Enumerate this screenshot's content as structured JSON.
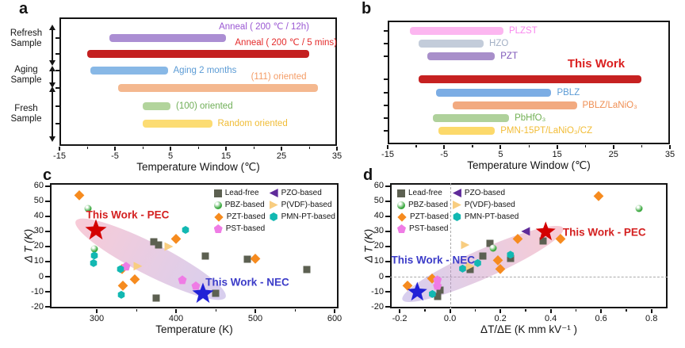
{
  "chart_data": [
    {
      "id": "a",
      "type": "bar-range",
      "panel_letter": "a",
      "xlabel": "Temperature Window (℃)",
      "xlim": [
        -15,
        35
      ],
      "xtick_vals": [
        -15,
        -5,
        5,
        15,
        25,
        35
      ],
      "xtick_labels": [
        "-15",
        "-5",
        "5",
        "15",
        "25",
        "35"
      ],
      "minor_xticks": [
        -10,
        0,
        10,
        20,
        30
      ],
      "group_labels": [
        {
          "label": "Refresh\nSample"
        },
        {
          "label": "Aging\nSample"
        },
        {
          "label": "Fresh\nSample"
        }
      ],
      "bars": [
        {
          "label": "Anneal ( 200 ℃ / 12h)",
          "range": [
            -6,
            15
          ],
          "color": "#ab8ed3",
          "label_color": "#9a57d3",
          "label_pos": "above",
          "label_right": 30
        },
        {
          "label": "Anneal ( 200 ℃ / 5 mins)",
          "range": [
            -10,
            30
          ],
          "color": "#c42020",
          "label_color": "#e42a2a",
          "label_pos": "above",
          "label_right": 35
        },
        {
          "label": "Aging 2 months",
          "range": [
            -9.5,
            4.5
          ],
          "color": "#88b8e6",
          "label_color": "#5b9bd5",
          "label_pos": "right"
        },
        {
          "label": "(111) oriented",
          "range": [
            -4.5,
            31.5
          ],
          "color": "#f4b88f",
          "label_color": "#f49c66",
          "label_pos": "above",
          "label_right": 29.5
        },
        {
          "label": "(100) oriented",
          "range": [
            0,
            5
          ],
          "color": "#b2d49c",
          "label_color": "#6fae57",
          "label_pos": "right"
        },
        {
          "label": "Random oriented",
          "range": [
            0,
            12.5
          ],
          "color": "#fcdc73",
          "label_color": "#f0bc35",
          "label_pos": "right"
        }
      ]
    },
    {
      "id": "b",
      "type": "bar-range",
      "panel_letter": "b",
      "xlabel": "Temperature Window (℃)",
      "xlim": [
        -15,
        35
      ],
      "xtick_vals": [
        -15,
        -5,
        5,
        15,
        25,
        35
      ],
      "xtick_labels": [
        "-15",
        "-5",
        "5",
        "15",
        "25",
        "35"
      ],
      "minor_xticks": [
        -10,
        0,
        10,
        20,
        30
      ],
      "bars": [
        {
          "label": "PLZST",
          "range": [
            -11,
            5.5
          ],
          "color": "#fcb6f0",
          "label_color": "#f986ee",
          "label_pos": "right"
        },
        {
          "label": "HZO",
          "range": [
            -9.5,
            2
          ],
          "color": "#c3ccda",
          "label_color": "#a3b0c5",
          "label_pos": "right"
        },
        {
          "label": "PZT",
          "range": [
            -8,
            4
          ],
          "color": "#a88fca",
          "label_color": "#7e57b8",
          "label_pos": "right"
        },
        {
          "label": "This Work",
          "range": [
            -9.5,
            30
          ],
          "color": "#c62121",
          "label_color": "#da1f1f",
          "label_pos": "above",
          "label_right": 27,
          "label_size": 15,
          "label_bold": true
        },
        {
          "label": "PBLZ",
          "range": [
            -6.5,
            14
          ],
          "color": "#7cade4",
          "label_color": "#5b9bd5",
          "label_pos": "right"
        },
        {
          "label": "PBLZ/LaNiO₃",
          "range": [
            -3.5,
            18.5
          ],
          "color": "#f2aa80",
          "label_color": "#ef8e52",
          "label_pos": "right"
        },
        {
          "label": "PbHfO₃",
          "range": [
            -7,
            6.5
          ],
          "color": "#afd19b",
          "label_color": "#71b053",
          "label_pos": "right"
        },
        {
          "label": "PMN-15PT/LaNiO₃/CZ",
          "range": [
            -6,
            4
          ],
          "color": "#fcd96b",
          "label_color": "#f2bc35",
          "label_pos": "right"
        }
      ]
    },
    {
      "id": "c",
      "type": "scatter",
      "panel_letter": "c",
      "xlabel": "Temperature (K)",
      "ylabel": "Δ T (K)",
      "xlim": [
        241,
        605
      ],
      "ylim": [
        -21,
        62
      ],
      "xtick_vals": [
        300,
        400,
        500,
        600
      ],
      "xtick_labels": [
        "300",
        "400",
        "500",
        "600"
      ],
      "minor_xticks": [
        350,
        450,
        550
      ],
      "ytick_vals": [
        60,
        50,
        40,
        30,
        20,
        10,
        0,
        -10,
        -20
      ],
      "ytick_labels": [
        "60",
        "50",
        "40",
        "30",
        "20",
        "10",
        "0",
        "-10",
        "-20"
      ],
      "legend": {
        "position": "top-right",
        "entries": [
          "Lead-free",
          "PBZ-based",
          "PZT-based",
          "PST-based",
          "PZO-based",
          "P(VDF)-based",
          "PMN-PT-based"
        ]
      },
      "series": [
        {
          "name": "Lead-free",
          "marker": "square",
          "color": "#5c6051",
          "points": [
            [
              372,
              23
            ],
            [
              378,
              21
            ],
            [
              437,
              13.5
            ],
            [
              490,
              11.5
            ],
            [
              565,
              5
            ],
            [
              375,
              -14
            ],
            [
              450,
              -11
            ]
          ]
        },
        {
          "name": "PBZ-based",
          "marker": "circle",
          "color": "#3aa83e",
          "points": [
            [
              289,
              45
            ],
            [
              297,
              18.5
            ]
          ]
        },
        {
          "name": "PZT-based",
          "marker": "diamond",
          "color": "#f68b1f",
          "points": [
            [
              278,
              54
            ],
            [
              400,
              25
            ],
            [
              500,
              12
            ],
            [
              332,
              5.5
            ],
            [
              348,
              -1.5
            ],
            [
              333,
              -6
            ]
          ]
        },
        {
          "name": "PST-based",
          "marker": "pentagon",
          "color": "#ef7ce5",
          "points": [
            [
              337,
              7
            ],
            [
              408,
              -2
            ],
            [
              425,
              -6
            ]
          ]
        },
        {
          "name": "PZO-based",
          "marker": "triangle-left",
          "color": "#5f2b9a",
          "points": []
        },
        {
          "name": "P(VDF)-based",
          "marker": "triangle-right",
          "color": "#f8cd80",
          "points": [
            [
              391,
              20
            ],
            [
              352,
              7
            ]
          ]
        },
        {
          "name": "PMN-PT-based",
          "marker": "hexagon",
          "color": "#12b8b2",
          "points": [
            [
              412,
              31
            ],
            [
              297,
              14
            ],
            [
              296,
              9
            ],
            [
              330,
              5
            ],
            [
              331,
              -12
            ]
          ]
        }
      ],
      "ellipse": {
        "center": [
          368,
          11.5
        ],
        "length": 212,
        "thickness": 40,
        "angle_deg": 27,
        "gradient": [
          "rgba(238,130,160,0.42)",
          "rgba(160,140,216,0.42)"
        ]
      },
      "highlights": [
        {
          "label": "This Work - PEC",
          "point": [
            299,
            31
          ],
          "star_color": "#d40000",
          "label_color": "#d42020",
          "label_offset": [
            40,
            -19
          ],
          "star_size": 27
        },
        {
          "label": "This Work - NEC",
          "point": [
            434,
            -11
          ],
          "star_color": "#2121d6",
          "label_color": "#3c3cc8",
          "label_offset": [
            56,
            -14
          ],
          "star_size": 27
        }
      ]
    },
    {
      "id": "d",
      "type": "scatter",
      "panel_letter": "d",
      "xlabel": "ΔT/ΔE (K mm kV⁻¹ )",
      "ylabel": "Δ T (K)",
      "xlim": [
        -0.238,
        0.864
      ],
      "ylim": [
        -21,
        62
      ],
      "xtick_vals": [
        -0.2,
        0.0,
        0.2,
        0.4,
        0.6,
        0.8
      ],
      "xtick_labels": [
        "-0.2",
        "0.0",
        "0.2",
        "0.4",
        "0.6",
        "0.8"
      ],
      "minor_xticks": [
        -0.1,
        0.1,
        0.3,
        0.5,
        0.7
      ],
      "ytick_vals": [
        60,
        50,
        40,
        30,
        20,
        10,
        0,
        -10,
        -20
      ],
      "ytick_labels": [
        "60",
        "50",
        "40",
        "30",
        "20",
        "10",
        "0",
        "-10",
        "-20"
      ],
      "dash_lines": {
        "x": 0,
        "y": 0
      },
      "legend": {
        "position": "top-left",
        "entries": [
          "Lead-free",
          "PBZ-based",
          "PZT-based",
          "PST-based",
          "PZO-based",
          "P(VDF)-based",
          "PMN-PT-based"
        ]
      },
      "series": [
        {
          "name": "Lead-free",
          "marker": "square",
          "color": "#5c6051",
          "points": [
            [
              0.37,
              23.5
            ],
            [
              0.16,
              22
            ],
            [
              0.13,
              13.5
            ],
            [
              0.24,
              12
            ],
            [
              0.08,
              4.8
            ],
            [
              -0.04,
              -9
            ],
            [
              -0.05,
              -13
            ]
          ]
        },
        {
          "name": "PBZ-based",
          "marker": "circle",
          "color": "#3aa83e",
          "points": [
            [
              0.75,
              45
            ],
            [
              0.17,
              19
            ]
          ]
        },
        {
          "name": "PZT-based",
          "marker": "diamond",
          "color": "#f68b1f",
          "points": [
            [
              0.59,
              53.5
            ],
            [
              0.44,
              25
            ],
            [
              0.27,
              25
            ],
            [
              0.19,
              11
            ],
            [
              0.2,
              5.3
            ],
            [
              -0.07,
              -1
            ],
            [
              -0.17,
              -6
            ]
          ]
        },
        {
          "name": "PST-based",
          "marker": "pentagon",
          "color": "#ef7ce5",
          "points": [
            [
              -0.05,
              -2
            ],
            [
              -0.05,
              -6
            ]
          ]
        },
        {
          "name": "PZO-based",
          "marker": "triangle-left",
          "color": "#5f2b9a",
          "points": [
            [
              0.3,
              30
            ]
          ]
        },
        {
          "name": "P(VDF)-based",
          "marker": "triangle-right",
          "color": "#f8cd80",
          "points": [
            [
              0.06,
              21
            ],
            [
              0.08,
              7
            ]
          ]
        },
        {
          "name": "PMN-PT-based",
          "marker": "hexagon",
          "color": "#12b8b2",
          "points": [
            [
              0.24,
              14.5
            ],
            [
              0.11,
              9
            ],
            [
              0.05,
              5.3
            ],
            [
              -0.07,
              -11.5
            ]
          ]
        }
      ],
      "ellipse": {
        "center": [
          0.13,
          8.5
        ],
        "length": 222,
        "thickness": 36,
        "angle_deg": -24,
        "gradient": [
          "rgba(160,140,216,0.42)",
          "rgba(240,140,160,0.45)"
        ]
      },
      "highlights": [
        {
          "label": "This Work - NEC",
          "point": [
            -0.13,
            -10
          ],
          "star_color": "#2121d6",
          "label_color": "#3c3cc8",
          "label_offset": [
            20,
            -40
          ],
          "star_size": 25
        },
        {
          "label": "This Work - PEC",
          "point": [
            0.38,
            30
          ],
          "star_color": "#d40000",
          "label_color": "#d42020",
          "label_offset": [
            74,
            1
          ],
          "star_size": 25
        }
      ]
    }
  ]
}
